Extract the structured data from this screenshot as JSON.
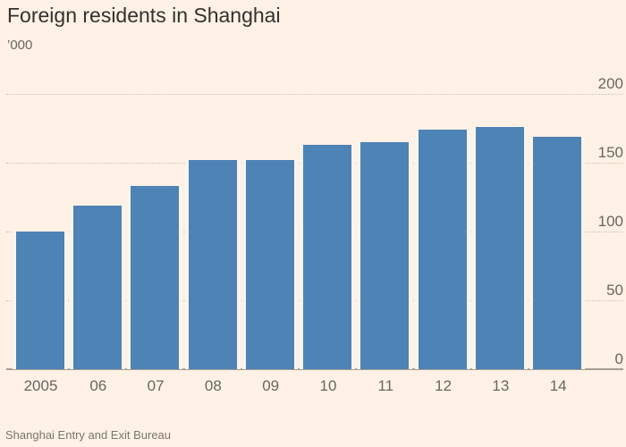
{
  "chart_data": {
    "type": "bar",
    "title": "Foreign residents in Shanghai",
    "subtitle": "’000",
    "source": "Shanghai Entry and Exit Bureau",
    "categories": [
      "2005",
      "06",
      "07",
      "08",
      "09",
      "10",
      "11",
      "12",
      "13",
      "14"
    ],
    "values": [
      100,
      119,
      133,
      152,
      152,
      163,
      165,
      174,
      176,
      169
    ],
    "xlabel": "",
    "ylabel": "'000",
    "ylim": [
      0,
      200
    ],
    "yticks": [
      0,
      50,
      100,
      150,
      200
    ],
    "ytick_labels": [
      "0",
      "50",
      "100",
      "150",
      "200"
    ],
    "legend": false,
    "legend_position": "none",
    "grid": "horizontal-dotted",
    "y_axis_side": "right",
    "colors": {
      "background": "#fff1e5",
      "bar": "#4e83b5",
      "bar_gap": "#f9f4ec",
      "title_text": "#33302e",
      "axis_text": "#6b6560",
      "gridline": "#cfc2b2",
      "baseline": "#a69d92",
      "source_text": "#7c756e"
    }
  }
}
